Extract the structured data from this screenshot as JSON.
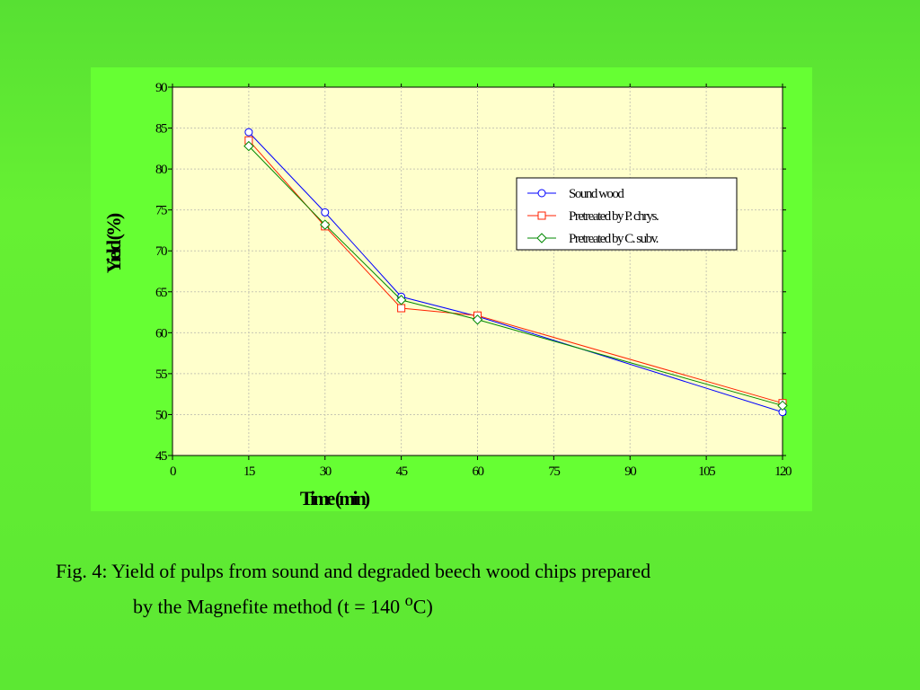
{
  "chart_data": {
    "type": "line",
    "title": "",
    "xlabel": "Time (min)",
    "ylabel": "Yield (%)",
    "xlim": [
      0,
      120
    ],
    "ylim": [
      45,
      90
    ],
    "xticks": [
      0,
      15,
      30,
      45,
      60,
      75,
      90,
      105,
      120
    ],
    "yticks": [
      45,
      50,
      55,
      60,
      65,
      70,
      75,
      80,
      85,
      90
    ],
    "grid": true,
    "legend_position": "top-right",
    "x": [
      15,
      30,
      45,
      60,
      120
    ],
    "series": [
      {
        "name": "Sound wood",
        "values": [
          84.5,
          74.7,
          64.4,
          62.0,
          50.3
        ],
        "color": "#0000ff",
        "marker": "circle"
      },
      {
        "name": "Pretreated by P. chrys.",
        "values": [
          83.5,
          73.0,
          63.0,
          62.1,
          51.4
        ],
        "color": "#ff2200",
        "marker": "square"
      },
      {
        "name": "Pretreated by C. subv.",
        "values": [
          82.8,
          73.2,
          64.0,
          61.6,
          51.1
        ],
        "color": "#008800",
        "marker": "diamond"
      }
    ]
  },
  "caption": {
    "line1": "Fig. 4: Yield of pulps from sound and degraded beech wood chips prepared",
    "line2_before": "by the Magnefite method (t = 140 ",
    "line2_sup": "o",
    "line2_after": "C)"
  },
  "colors": {
    "plot_background": "#ffffcc",
    "panel_background": "#66ff33",
    "slide_background": "#5ce833"
  }
}
